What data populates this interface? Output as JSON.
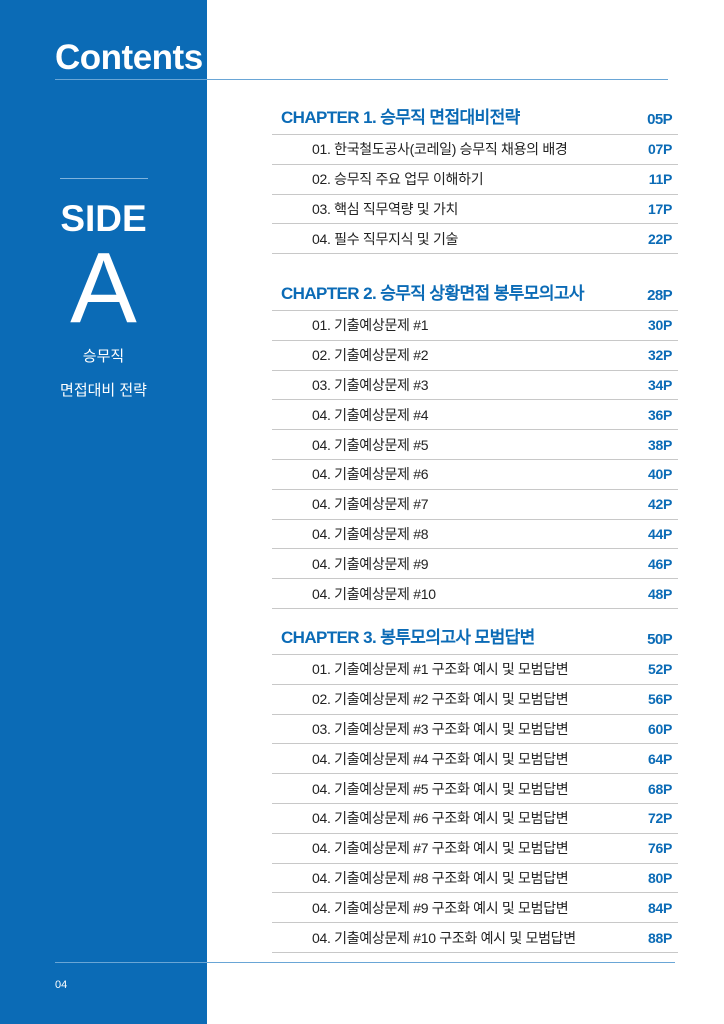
{
  "header": {
    "title": "Contents"
  },
  "side": {
    "label": "SIDE",
    "letter": "A",
    "subtitle1": "승무직",
    "subtitle2": "면접대비 전략"
  },
  "chapters": [
    {
      "title": "CHAPTER 1. 승무직 면접대비전략",
      "page": "05P",
      "items": [
        {
          "label": "01. 한국철도공사(코레일) 승무직 채용의 배경",
          "page": "07P"
        },
        {
          "label": "02. 승무직 주요 업무 이해하기",
          "page": "11P"
        },
        {
          "label": "03. 핵심 직무역량 및 가치",
          "page": "17P"
        },
        {
          "label": "04. 필수 직무지식 및 기술",
          "page": "22P"
        }
      ]
    },
    {
      "title": "CHAPTER 2. 승무직 상황면접 봉투모의고사",
      "page": "28P",
      "items": [
        {
          "label": "01. 기출예상문제 #1",
          "page": "30P"
        },
        {
          "label": "02. 기출예상문제 #2",
          "page": "32P"
        },
        {
          "label": "03. 기출예상문제 #3",
          "page": "34P"
        },
        {
          "label": "04. 기출예상문제 #4",
          "page": "36P"
        },
        {
          "label": "04. 기출예상문제 #5",
          "page": "38P"
        },
        {
          "label": "04. 기출예상문제 #6",
          "page": "40P"
        },
        {
          "label": "04. 기출예상문제 #7",
          "page": "42P"
        },
        {
          "label": "04. 기출예상문제 #8",
          "page": "44P"
        },
        {
          "label": "04. 기출예상문제 #9",
          "page": "46P"
        },
        {
          "label": "04. 기출예상문제 #10",
          "page": "48P"
        }
      ]
    },
    {
      "title": "CHAPTER 3. 봉투모의고사 모범답변",
      "page": "50P",
      "items": [
        {
          "label": "01. 기출예상문제 #1 구조화 예시 및 모범답변",
          "page": "52P"
        },
        {
          "label": "02. 기출예상문제 #2 구조화 예시 및 모범답변",
          "page": "56P"
        },
        {
          "label": "03. 기출예상문제 #3 구조화 예시 및 모범답변",
          "page": "60P"
        },
        {
          "label": "04. 기출예상문제 #4 구조화 예시 및 모범답변",
          "page": "64P"
        },
        {
          "label": "04. 기출예상문제 #5 구조화 예시 및 모범답변",
          "page": "68P"
        },
        {
          "label": "04. 기출예상문제 #6 구조화 예시 및 모범답변",
          "page": "72P"
        },
        {
          "label": "04. 기출예상문제 #7 구조화 예시 및 모범답변",
          "page": "76P"
        },
        {
          "label": "04. 기출예상문제 #8 구조화 예시 및 모범답변",
          "page": "80P"
        },
        {
          "label": "04. 기출예상문제 #9 구조화 예시 및 모범답변",
          "page": "84P"
        },
        {
          "label": "04. 기출예상문제 #10 구조화 예시 및 모범답변",
          "page": "88P"
        }
      ]
    }
  ],
  "footer": {
    "page_number": "04"
  },
  "colors": {
    "accent": "#0b6bb6"
  }
}
